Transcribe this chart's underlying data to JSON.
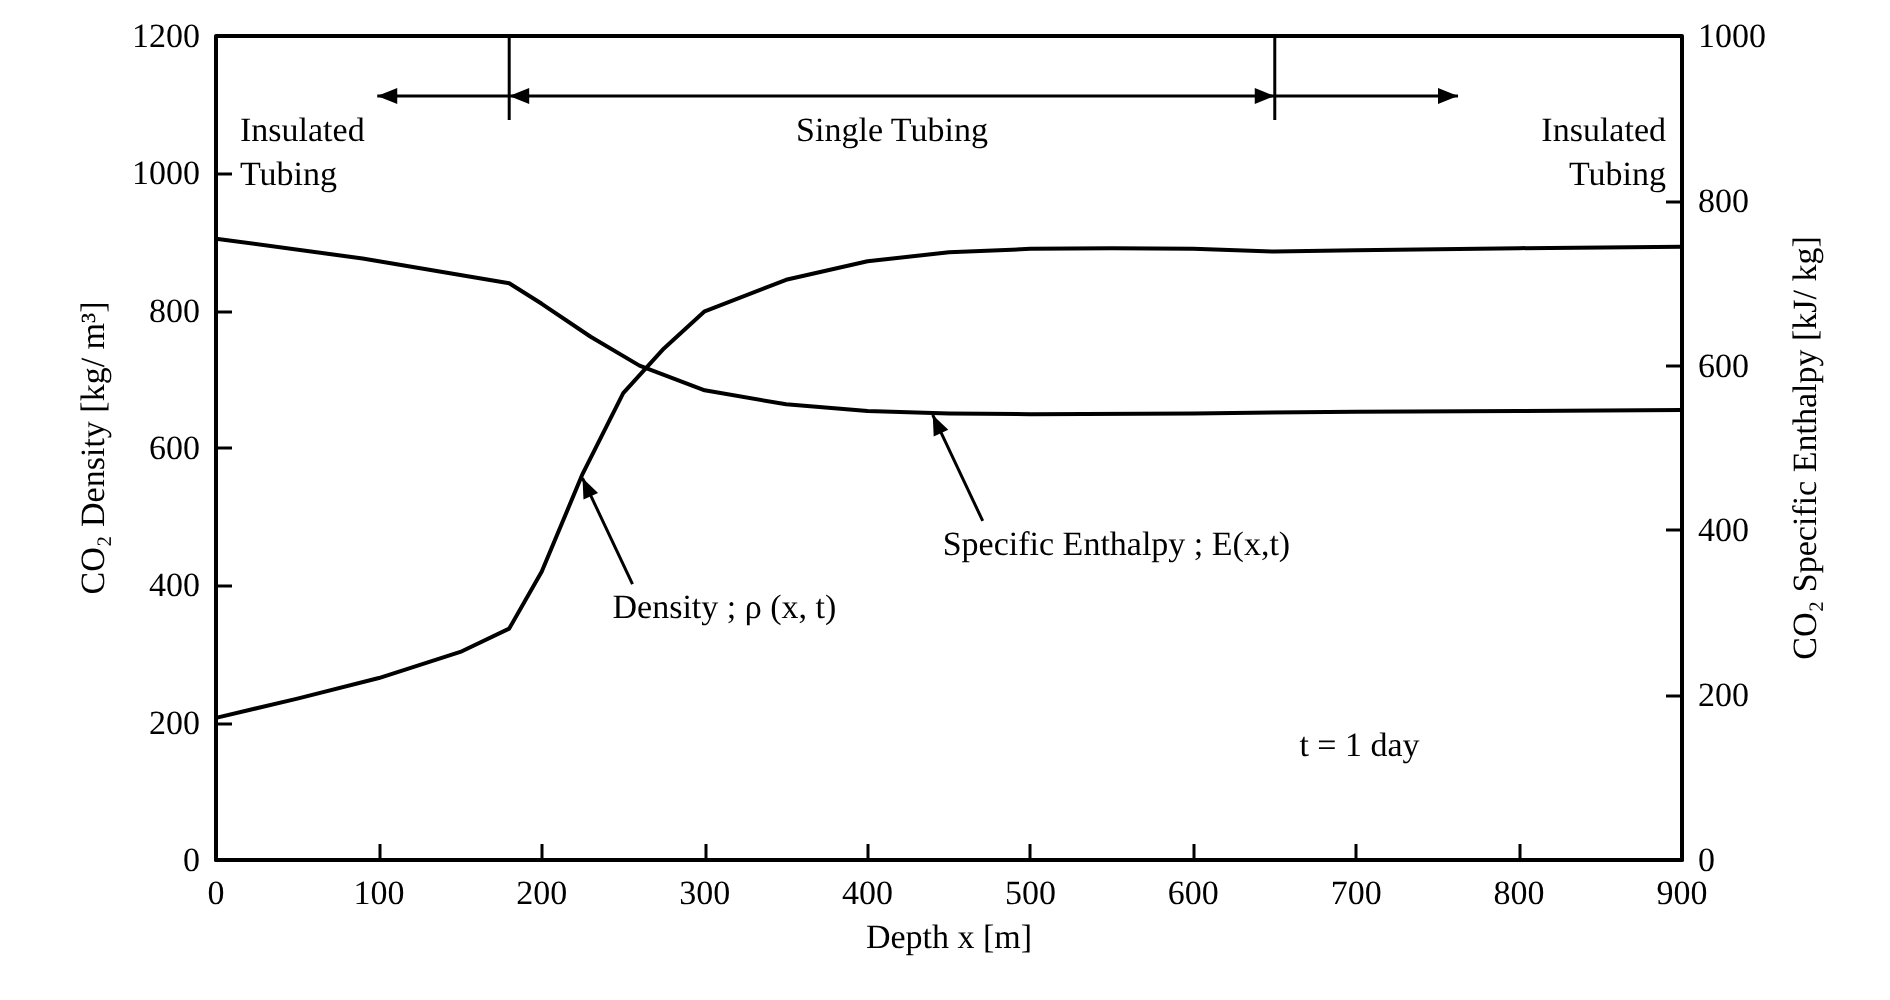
{
  "chart_data": {
    "type": "line",
    "xlabel": "Depth x [m]",
    "ylabel": "CO₂ Density [kg/ m³]",
    "y2label": "CO₂ Specific Enthalpy [kJ/ kg]",
    "xlim": [
      0,
      900
    ],
    "xticks": [
      0,
      100,
      200,
      300,
      400,
      500,
      600,
      700,
      800,
      900
    ],
    "ylim": [
      0,
      1200
    ],
    "yticks": [
      0,
      200,
      400,
      600,
      800,
      1000,
      1200
    ],
    "y2lim": [
      0,
      1000
    ],
    "y2ticks": [
      0,
      200,
      400,
      600,
      800,
      1000
    ],
    "grid": false,
    "marker": "none",
    "line_style": "solid",
    "series": [
      {
        "color": "#000000",
        "x": [
          0,
          50,
          100,
          150,
          180,
          200,
          225,
          250,
          275,
          300,
          350,
          400,
          450,
          500,
          550,
          600,
          650,
          700,
          800,
          900
        ],
        "values": [
          207,
          235,
          265,
          303,
          337,
          420,
          562,
          680,
          745,
          799,
          845,
          872,
          885,
          890,
          891,
          890,
          886,
          888,
          891,
          893
        ]
      },
      {
        "color": "#000000",
        "axis": "y2",
        "x": [
          0,
          90,
          180,
          200,
          230,
          260,
          300,
          350,
          400,
          450,
          500,
          600,
          700,
          800,
          900
        ],
        "values": [
          754,
          730,
          700,
          675,
          635,
          600,
          570,
          553,
          545,
          542,
          541,
          542,
          544,
          545,
          546
        ]
      }
    ],
    "ref_lines": [
      {
        "axis": "x",
        "value": 180
      },
      {
        "axis": "x",
        "value": 650
      }
    ],
    "annotations": [
      "Insulated Tubing",
      "Single Tubing",
      "Insulated Tubing",
      {
        "text": "Density ; ρ (x, t)",
        "x": 225,
        "y": 562
      },
      {
        "text": "Specific Enthalpy ; E(x,t)",
        "x": 440,
        "y": 654
      },
      "t = 1 day"
    ]
  }
}
